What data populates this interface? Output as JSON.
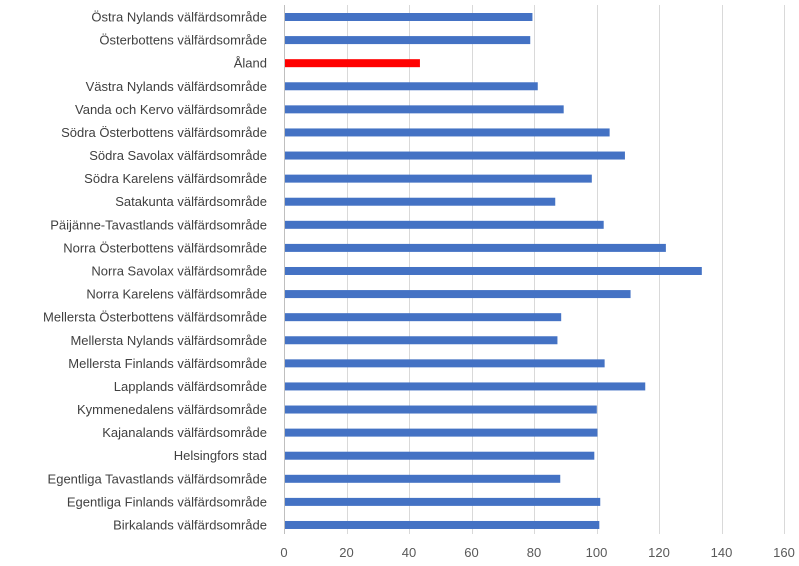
{
  "chart_data": {
    "type": "bar",
    "orientation": "horizontal",
    "categories": [
      "Östra Nylands välfärdsområde",
      "Österbottens välfärdsområde",
      "Åland",
      "Västra Nylands välfärdsområde",
      "Vanda och Kervo välfärdsområde",
      "Södra Österbottens välfärdsområde",
      "Södra Savolax välfärdsområde",
      "Södra Karelens välfärdsområde",
      "Satakunta välfärdsområde",
      "Päijänne-Tavastlands välfärdsområde",
      "Norra Österbottens välfärdsområde",
      "Norra Savolax välfärdsområde",
      "Norra Karelens välfärdsområde",
      "Mellersta Österbottens välfärdsområde",
      "Mellersta Nylands välfärdsområde",
      "Mellersta Finlands välfärdsområde",
      "Lapplands välfärdsområde",
      "Kymmenedalens välfärdsområde",
      "Kajanalands välfärdsområde",
      "Helsingfors stad",
      "Egentliga Tavastlands välfärdsområde",
      "Egentliga Finlands välfärdsområde",
      "Birkalands välfärdsområde"
    ],
    "values": [
      79.5,
      78.8,
      43.5,
      81.2,
      89.5,
      104.2,
      109.1,
      98.5,
      86.8,
      102.3,
      122.2,
      133.7,
      110.9,
      88.7,
      87.5,
      102.6,
      115.6,
      100.1,
      100.3,
      99.3,
      88.4,
      101.2,
      100.9
    ],
    "highlight_index": 2,
    "colors": {
      "default": "#4472C4",
      "highlight": "#FF0000"
    },
    "xlim": [
      0,
      160
    ],
    "xticks": [
      0,
      20,
      40,
      60,
      80,
      100,
      120,
      140,
      160
    ],
    "title": "",
    "xlabel": "",
    "ylabel": "",
    "grid": "vertical",
    "legend": "none"
  }
}
